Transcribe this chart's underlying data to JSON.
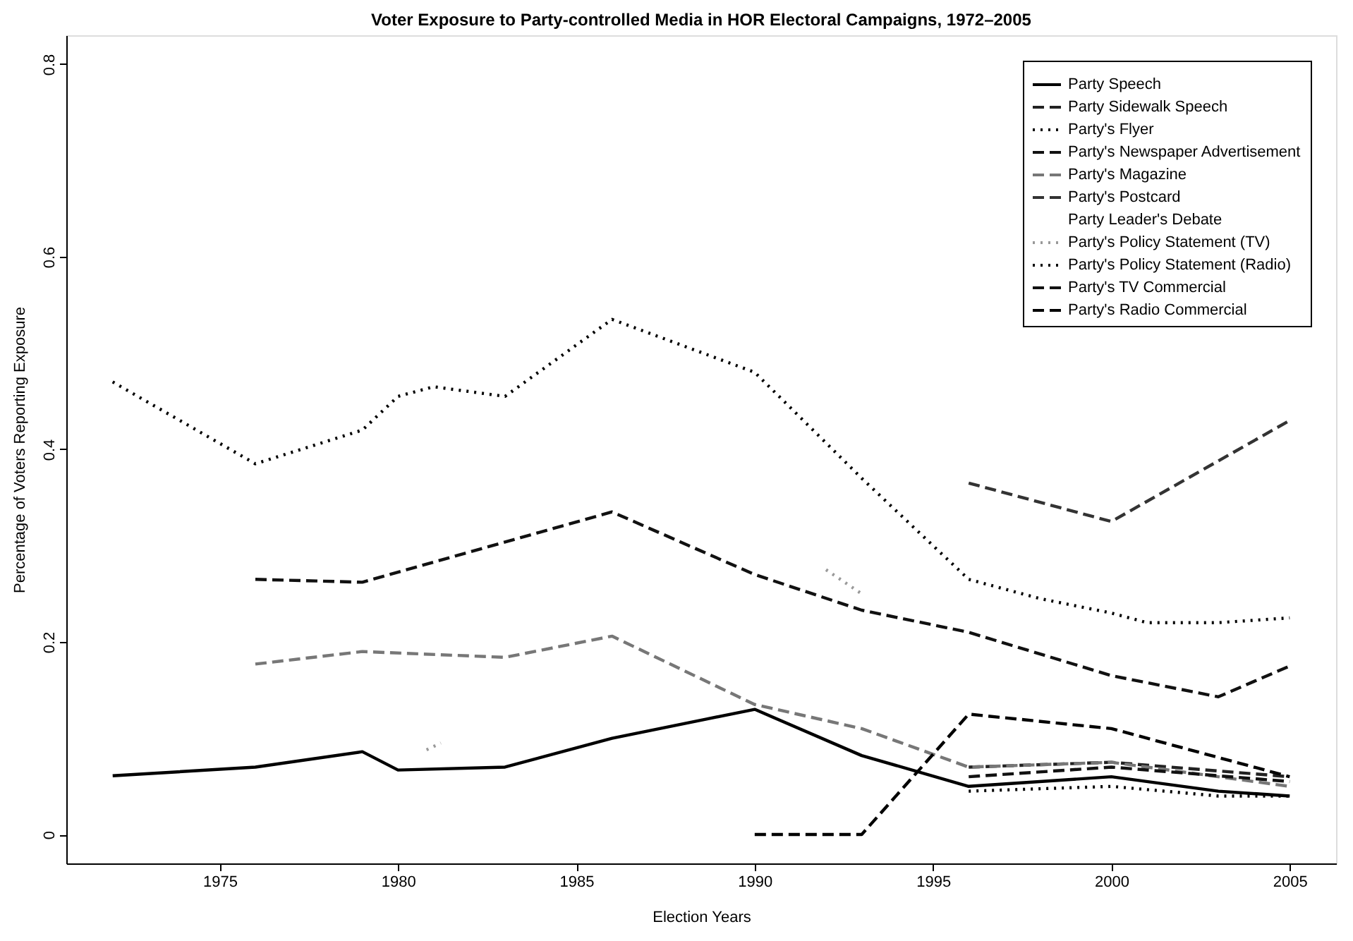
{
  "chart_data": {
    "type": "line",
    "title": "Voter Exposure to Party-controlled Media in HOR Electoral Campaigns, 1972–2005",
    "xlabel": "Election Years",
    "ylabel": "Percentage of Voters Reporting Exposure",
    "xlim": [
      1970.7,
      2006.3
    ],
    "xticks": [
      1975,
      1980,
      1985,
      1990,
      1995,
      2000,
      2005
    ],
    "ylim": [
      -0.03,
      0.83
    ],
    "yticks": [
      {
        "value": 0,
        "label": "0"
      },
      0.2,
      0.4,
      0.6,
      0.8
    ],
    "grid": false,
    "legend": "top right",
    "marker": "none",
    "series": [
      {
        "name": "Party Speech",
        "color": "#000000",
        "line_style": "solid",
        "x": [
          1972,
          1976,
          1979,
          1980,
          1983,
          1986,
          1990,
          1993,
          1996,
          2000,
          2003,
          2005
        ],
        "values": [
          0.061,
          0.07,
          0.086,
          0.067,
          0.07,
          0.1,
          0.13,
          0.082,
          0.05,
          0.06,
          0.045,
          0.04
        ]
      },
      {
        "name": "Party Sidewalk Speech",
        "color": "#222222",
        "line_style": "dashed",
        "x": [
          1996,
          2000,
          2005
        ],
        "values": [
          0.07,
          0.075,
          0.06
        ]
      },
      {
        "name": "Party's Flyer",
        "color": "#000000",
        "line_style": "dotted",
        "x": [
          1972,
          1976,
          1979,
          1980,
          1981,
          1983,
          1986,
          1990,
          1993,
          1996,
          1998,
          2000,
          2001,
          2003,
          2005
        ],
        "values": [
          0.47,
          0.385,
          0.42,
          0.455,
          0.465,
          0.455,
          0.535,
          0.48,
          0.37,
          0.265,
          0.245,
          0.23,
          0.22,
          0.22,
          0.225
        ]
      },
      {
        "name": "Party's Newspaper Advertisement",
        "color": "#111111",
        "line_style": "dashed",
        "x": [
          1976,
          1979,
          1986,
          1990,
          1993,
          1996,
          2000,
          2003,
          2005
        ],
        "values": [
          0.265,
          0.262,
          0.335,
          0.27,
          0.233,
          0.21,
          0.165,
          0.143,
          0.175
        ]
      },
      {
        "name": "Party's Magazine",
        "color": "#777777",
        "line_style": "dashed",
        "x": [
          1976,
          1979,
          1983,
          1986,
          1990,
          1993,
          1996,
          2000,
          2005
        ],
        "values": [
          0.177,
          0.19,
          0.184,
          0.206,
          0.135,
          0.11,
          0.07,
          0.075,
          0.05
        ]
      },
      {
        "name": "Party's Postcard",
        "color": "#333333",
        "line_style": "dashed",
        "x": [
          1996,
          2000,
          2005
        ],
        "values": [
          0.365,
          0.325,
          0.43
        ]
      },
      {
        "name": "Party Leader's Debate"
      },
      {
        "name": "Party's Policy Statement (TV)",
        "color": "#999999",
        "line_style": "dotted",
        "x": [
          1980.8,
          1981.2,
          1986,
          1992,
          1993
        ],
        "values": [
          0.088,
          0.095,
          null,
          0.275,
          0.25
        ]
      },
      {
        "name": "Party's Policy Statement (Radio)",
        "color": "#000000",
        "line_style": "dotted",
        "x": [
          1996,
          2000,
          2003,
          2005
        ],
        "values": [
          0.045,
          0.05,
          0.04,
          0.04
        ]
      },
      {
        "name": "Party's TV Commercial",
        "color": "#111111",
        "line_style": "dashed",
        "x": [
          1996,
          2000,
          2005
        ],
        "values": [
          0.06,
          0.07,
          0.055
        ]
      },
      {
        "name": "Party's Radio Commercial",
        "color": "#000000",
        "line_style": "dashed",
        "x": [
          1990,
          1993,
          1996,
          2000,
          2005
        ],
        "values": [
          0.0,
          0.0,
          0.125,
          0.11,
          0.06
        ]
      }
    ]
  }
}
